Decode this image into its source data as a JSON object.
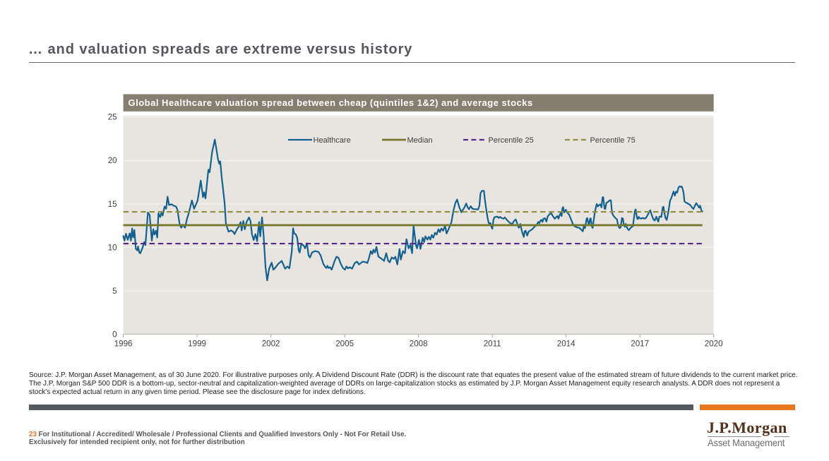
{
  "header": {
    "title": "… and valuation spreads are extreme versus history"
  },
  "chart_data": {
    "type": "line",
    "title": "Global Healthcare valuation spread between cheap (quintiles 1&2) and average stocks",
    "xlabel": "",
    "ylabel": "",
    "xlim": [
      1996,
      2020
    ],
    "ylim": [
      0,
      25
    ],
    "xticks": [
      1996,
      1999,
      2002,
      2005,
      2008,
      2011,
      2014,
      2017,
      2020
    ],
    "yticks": [
      0,
      5,
      10,
      15,
      20,
      25
    ],
    "grid": "horizontal",
    "legend_position": "top-center-inside",
    "series": [
      {
        "name": "Healthcare",
        "kind": "line",
        "style": "solid",
        "color": "#14618f",
        "x": [
          1996.0,
          1996.05,
          1996.11,
          1996.18,
          1996.26,
          1996.31,
          1996.36,
          1996.4,
          1996.45,
          1996.51,
          1996.57,
          1996.6,
          1996.65,
          1996.69,
          1996.79,
          1996.85,
          1996.9,
          1997.0,
          1997.07,
          1997.16,
          1997.22,
          1997.27,
          1997.33,
          1997.38,
          1997.43,
          1997.5,
          1997.56,
          1997.6,
          1997.68,
          1997.74,
          1997.8,
          1997.86,
          1997.96,
          1998.05,
          1998.14,
          1998.2,
          1998.3,
          1998.36,
          1998.42,
          1998.51,
          1998.6,
          1998.66,
          1998.79,
          1998.88,
          1998.97,
          1999.02,
          1999.15,
          1999.24,
          1999.29,
          1999.34,
          1999.46,
          1999.51,
          1999.61,
          1999.72,
          1999.78,
          1999.85,
          1999.9,
          1999.94,
          2000.0,
          2000.04,
          2000.12,
          2000.17,
          2000.23,
          2000.28,
          2000.38,
          2000.48,
          2000.52,
          2000.62,
          2000.69,
          2000.77,
          2000.81,
          2000.88,
          2000.94,
          2001.01,
          2001.11,
          2001.17,
          2001.23,
          2001.3,
          2001.37,
          2001.44,
          2001.52,
          2001.57,
          2001.64,
          2001.7,
          2001.74,
          2001.78,
          2001.85,
          2001.93,
          2002.03,
          2002.1,
          2002.18,
          2002.3,
          2002.44,
          2002.58,
          2002.67,
          2002.75,
          2002.85,
          2002.9,
          2002.95,
          2003.01,
          2003.07,
          2003.13,
          2003.17,
          2003.24,
          2003.33,
          2003.39,
          2003.47,
          2003.53,
          2003.59,
          2003.67,
          2003.79,
          2003.93,
          2004.02,
          2004.13,
          2004.22,
          2004.26,
          2004.3,
          2004.35,
          2004.41,
          2004.47,
          2004.59,
          2004.67,
          2004.75,
          2004.84,
          2004.93,
          2005.01,
          2005.07,
          2005.13,
          2005.21,
          2005.3,
          2005.41,
          2005.5,
          2005.58,
          2005.73,
          2005.87,
          2005.92,
          2005.97,
          2006.06,
          2006.12,
          2006.17,
          2006.23,
          2006.29,
          2006.37,
          2006.46,
          2006.54,
          2006.6,
          2006.69,
          2006.77,
          2006.83,
          2006.91,
          2007.0,
          2007.06,
          2007.14,
          2007.23,
          2007.28,
          2007.37,
          2007.45,
          2007.51,
          2007.6,
          2007.67,
          2007.74,
          2007.8,
          2007.85,
          2007.9,
          2007.94,
          2008.02,
          2008.08,
          2008.17,
          2008.23,
          2008.28,
          2008.36,
          2008.42,
          2008.48,
          2008.54,
          2008.6,
          2008.67,
          2008.74,
          2008.81,
          2008.87,
          2008.93,
          2009.0,
          2009.08,
          2009.14,
          2009.22,
          2009.34,
          2009.42,
          2009.5,
          2009.57,
          2009.65,
          2009.74,
          2009.79,
          2009.87,
          2009.94,
          2010.0,
          2010.05,
          2010.12,
          2010.2,
          2010.26,
          2010.34,
          2010.42,
          2010.48,
          2010.52,
          2010.58,
          2010.66,
          2010.7,
          2010.74,
          2010.77,
          2010.81,
          2010.85,
          2010.88,
          2010.92,
          2010.96,
          2011.0,
          2011.05,
          2011.09,
          2011.2,
          2011.26,
          2011.32,
          2011.39,
          2011.46,
          2011.51,
          2011.62,
          2011.71,
          2011.81,
          2011.87,
          2011.95,
          2012.02,
          2012.05,
          2012.08,
          2012.14,
          2012.2,
          2012.24,
          2012.28,
          2012.32,
          2012.36,
          2012.42,
          2012.48,
          2012.56,
          2012.64,
          2012.72,
          2012.8,
          2012.83,
          2012.87,
          2012.91,
          2012.96,
          2013.0,
          2013.04,
          2013.08,
          2013.14,
          2013.18,
          2013.2,
          2013.25,
          2013.29,
          2013.33,
          2013.39,
          2013.46,
          2013.54,
          2013.62,
          2013.65,
          2013.69,
          2013.74,
          2013.78,
          2013.82,
          2013.85,
          2013.88,
          2013.92,
          2013.99,
          2014.03,
          2014.12,
          2014.21,
          2014.27,
          2014.34,
          2014.4,
          2014.44,
          2014.54,
          2014.6,
          2014.68,
          2014.72,
          2014.77,
          2014.83,
          2014.86,
          2014.91,
          2014.94,
          2014.97,
          2015.0,
          2015.05,
          2015.08,
          2015.12,
          2015.17,
          2015.22,
          2015.25,
          2015.29,
          2015.34,
          2015.39,
          2015.44,
          2015.48,
          2015.51,
          2015.56,
          2015.59,
          2015.64,
          2015.67,
          2015.73,
          2015.78,
          2015.82,
          2015.87,
          2015.92,
          2015.97,
          2016.02,
          2016.07,
          2016.12,
          2016.17,
          2016.22,
          2016.27,
          2016.31,
          2016.35,
          2016.39,
          2016.43,
          2016.48,
          2016.52,
          2016.55,
          2016.62,
          2016.67,
          2016.72,
          2016.77,
          2016.8,
          2016.83,
          2016.88,
          2016.92,
          2016.95,
          2016.98,
          2017.05,
          2017.11,
          2017.18,
          2017.25,
          2017.33,
          2017.42,
          2017.49,
          2017.55,
          2017.6,
          2017.67,
          2017.72,
          2017.75,
          2017.79,
          2017.83,
          2017.87,
          2017.93,
          2017.96,
          2018.0,
          2018.04,
          2018.09,
          2018.15,
          2018.19,
          2018.23,
          2018.27,
          2018.33,
          2018.37,
          2018.42,
          2018.47,
          2018.52,
          2018.57,
          2018.62,
          2018.66,
          2018.7,
          2018.74,
          2018.78,
          2018.81,
          2018.86,
          2018.92,
          2018.98,
          2019.04,
          2019.09,
          2019.14,
          2019.18,
          2019.23,
          2019.29,
          2019.35,
          2019.41,
          2019.45,
          2019.48,
          2019.51,
          2019.54
        ],
        "values": [
          11.3,
          10.77,
          11.56,
          10.86,
          11.6,
          10.77,
          12.17,
          11.13,
          12.0,
          9.82,
          9.65,
          10.08,
          9.42,
          9.3,
          10.0,
          10.61,
          10.26,
          14.0,
          13.74,
          10.77,
          12.08,
          11.47,
          11.91,
          11.13,
          13.92,
          13.48,
          14.09,
          13.65,
          14.7,
          14.44,
          15.83,
          14.87,
          14.96,
          14.79,
          14.7,
          14.35,
          12.52,
          12.26,
          12.61,
          12.26,
          13.39,
          13.92,
          15.4,
          14.44,
          15.05,
          15.37,
          17.69,
          15.77,
          16.32,
          15.63,
          18.92,
          18.65,
          20.97,
          22.4,
          21.39,
          20.15,
          19.61,
          19.88,
          18.1,
          17.14,
          15.09,
          12.76,
          12.21,
          11.8,
          11.94,
          11.75,
          11.52,
          12.07,
          12.35,
          12.9,
          11.94,
          13.03,
          12.07,
          12.9,
          13.44,
          13.03,
          11.52,
          10.84,
          11.52,
          10.7,
          12.9,
          11.25,
          13.44,
          11.52,
          9.61,
          7.7,
          6.19,
          7.56,
          8.24,
          7.42,
          7.65,
          8.1,
          8.43,
          7.54,
          7.79,
          7.58,
          9.5,
          12.19,
          11.59,
          11.51,
          11.1,
          9.65,
          9.4,
          10.38,
          10.21,
          9.89,
          10.46,
          9.08,
          8.83,
          9.4,
          9.56,
          9.48,
          9.08,
          8.11,
          7.7,
          7.62,
          7.87,
          7.62,
          7.7,
          7.43,
          8.43,
          8.92,
          8.79,
          8.11,
          7.62,
          7.43,
          7.79,
          7.58,
          7.7,
          7.54,
          8.19,
          8.35,
          8.03,
          8.35,
          8.27,
          8.19,
          8.6,
          9.56,
          9.24,
          9.73,
          9.4,
          10.05,
          8.92,
          8.76,
          8.6,
          8.43,
          9.32,
          8.43,
          8.27,
          8.83,
          8.68,
          8.92,
          8.03,
          9.81,
          8.6,
          9.56,
          9.32,
          10.94,
          9.89,
          10.3,
          9.32,
          12.48,
          11.35,
          10.21,
          9.89,
          10.86,
          9.81,
          11.1,
          10.61,
          11.26,
          10.89,
          11.21,
          10.89,
          11.42,
          11.1,
          11.67,
          11.47,
          12.08,
          11.75,
          12.16,
          11.91,
          12.48,
          11.59,
          12.08,
          12.89,
          14.2,
          15.1,
          15.5,
          14.7,
          14.03,
          14.25,
          14.6,
          15.04,
          14.6,
          14.38,
          14.73,
          14.43,
          14.4,
          14.38,
          14.35,
          14.8,
          16.2,
          16.5,
          16.5,
          15.5,
          14.66,
          14.1,
          13.4,
          12.84,
          12.72,
          12.8,
          12.4,
          12.14,
          13.2,
          13.46,
          13.54,
          13.38,
          13.5,
          13.35,
          13.3,
          13.45,
          13.07,
          12.82,
          12.66,
          12.99,
          13.22,
          12.69,
          12.44,
          12.25,
          12.69,
          11.88,
          11.54,
          11.2,
          11.85,
          11.91,
          11.35,
          11.82,
          11.95,
          12.12,
          12.39,
          12.54,
          12.73,
          12.92,
          12.77,
          13.07,
          13.15,
          12.92,
          13.29,
          13.35,
          13.07,
          12.96,
          13.52,
          13.7,
          13.81,
          13.93,
          13.6,
          13.29,
          13.52,
          13.6,
          13.3,
          13.73,
          13.93,
          13.6,
          14.45,
          14.63,
          14.0,
          14.33,
          14.05,
          13.77,
          13.15,
          12.72,
          12.42,
          12.37,
          12.29,
          12.24,
          12.07,
          11.85,
          12.46,
          12.2,
          13.24,
          13.37,
          12.72,
          12.64,
          13.24,
          13.33,
          12.37,
          12.24,
          13.07,
          14.02,
          14.73,
          14.99,
          14.7,
          14.85,
          14.95,
          14.6,
          15.73,
          15.77,
          14.5,
          14.4,
          15.12,
          15.16,
          15.3,
          15.41,
          15.41,
          13.94,
          13.66,
          13.48,
          13.33,
          13.2,
          12.49,
          12.22,
          12.3,
          13.38,
          13.3,
          12.6,
          12.36,
          12.7,
          12.22,
          12.07,
          11.98,
          12.22,
          12.36,
          12.44,
          13.66,
          14.22,
          14.36,
          13.38,
          13.24,
          13.5,
          13.38,
          13.3,
          13.38,
          13.3,
          13.38,
          13.8,
          14.27,
          13.65,
          13.21,
          13.07,
          13.52,
          13.09,
          12.96,
          13.52,
          13.56,
          13.48,
          14.61,
          14.66,
          13.9,
          13.4,
          13.15,
          14.0,
          14.66,
          15.4,
          15.6,
          16.1,
          16.43,
          15.95,
          16.4,
          16.3,
          16.9,
          17.02,
          16.95,
          17.0,
          16.7,
          16.2,
          15.31,
          15.17,
          15.09,
          14.97,
          14.89,
          14.69,
          14.52,
          14.42,
          14.75,
          15.08,
          14.83,
          14.57,
          14.79,
          14.44,
          14.18,
          14.12
        ]
      },
      {
        "name": "Median",
        "kind": "hline",
        "style": "solid",
        "color": "#76792a",
        "value": 12.55,
        "span": [
          1996,
          2019.54
        ]
      },
      {
        "name": "Percentile 25",
        "kind": "hline",
        "style": "dashed",
        "color": "#55298a",
        "value": 10.43,
        "span": [
          1996,
          2019.54
        ]
      },
      {
        "name": "Percentile 75",
        "kind": "hline",
        "style": "dashed",
        "color": "#8d8f3f",
        "value": 14.08,
        "span": [
          1996,
          2019.54
        ]
      }
    ]
  },
  "source_note": {
    "lines": [
      "Source: J.P. Morgan Asset Management, as of 30 June 2020. For illustrative purposes only. A Dividend Discount Rate (DDR) is the discount rate that equates the present value of the estimated stream of future dividends to the current market price.",
      "The J.P. Morgan S&P 500 DDR is a bottom-up, sector-neutral and capitalization-weighted average of DDRs on large-capitalization stocks as estimated by J.P. Morgan Asset Management equity research analysts. A DDR does not represent a",
      "stock's expected actual return in any given time period. Please see the disclosure page for index definitions."
    ]
  },
  "footer": {
    "page_number": "23",
    "disclaimer_line1": "For Institutional / Accredited/ Wholesale / Professional Clients and Qualified Investors Only - Not For Retail Use.",
    "disclaimer_line2": "Exclusively for intended recipient only, not for further distribution"
  },
  "logo": {
    "wordmark": "J.P.Morgan",
    "subtitle": "Asset Management"
  },
  "colors": {
    "accent_orange": "#e87722",
    "bar_gray": "#555a60",
    "chart_header_bg": "#867e70",
    "plot_bg": "#e8e5e1",
    "healthcare_blue": "#14618f",
    "median_olive": "#76792a",
    "p25_purple": "#55298a",
    "p75_olive": "#8d8f3f"
  }
}
